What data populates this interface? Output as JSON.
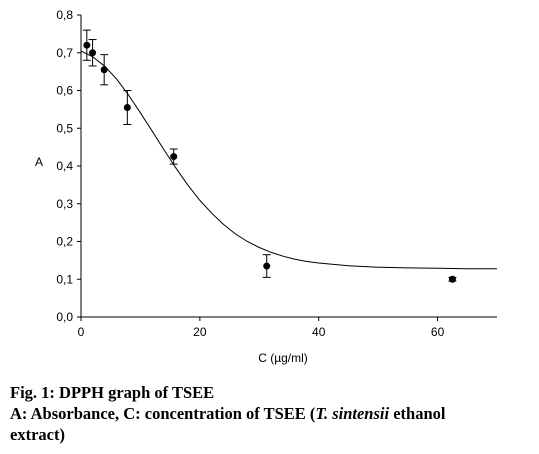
{
  "chart_data": {
    "type": "scatter",
    "title": "",
    "xlabel": "C (µg/ml)",
    "ylabel": "A",
    "xlim": [
      0,
      70
    ],
    "ylim": [
      0,
      0.8
    ],
    "x_ticks": [
      "0",
      "20",
      "40",
      "60"
    ],
    "y_ticks": [
      "0,0",
      "0,1",
      "0,2",
      "0,3",
      "0,4",
      "0,5",
      "0,6",
      "0,7",
      "0,8"
    ],
    "grid": false,
    "legend": "none",
    "points": [
      {
        "x": 0.98,
        "y": 0.72,
        "err": 0.04
      },
      {
        "x": 1.95,
        "y": 0.7,
        "err": 0.035
      },
      {
        "x": 3.9,
        "y": 0.655,
        "err": 0.04
      },
      {
        "x": 7.8,
        "y": 0.555,
        "err": 0.045
      },
      {
        "x": 15.6,
        "y": 0.425,
        "err": 0.02
      },
      {
        "x": 31.25,
        "y": 0.135,
        "err": 0.03
      },
      {
        "x": 62.5,
        "y": 0.1,
        "err": 0.005
      }
    ],
    "fit_curve": {
      "type": "sigmoid",
      "x": [
        0,
        2,
        4,
        6,
        8,
        10,
        12,
        14,
        16,
        18,
        20,
        22,
        24,
        26,
        28,
        30,
        32,
        34,
        36,
        38,
        40,
        45,
        50,
        55,
        60,
        65,
        70
      ],
      "y": [
        0.705,
        0.689,
        0.664,
        0.63,
        0.588,
        0.541,
        0.492,
        0.442,
        0.394,
        0.349,
        0.309,
        0.275,
        0.245,
        0.22,
        0.2,
        0.184,
        0.171,
        0.161,
        0.153,
        0.147,
        0.143,
        0.136,
        0.132,
        0.13,
        0.129,
        0.128,
        0.128
      ]
    }
  },
  "caption": {
    "line1": "Fig. 1: DPPH graph of TSEE",
    "line2_pre": "A: Absorbance, C: concentration of TSEE (",
    "line2_italic": "T. sintensii",
    "line2_post": " ethanol",
    "line3": "extract)"
  }
}
